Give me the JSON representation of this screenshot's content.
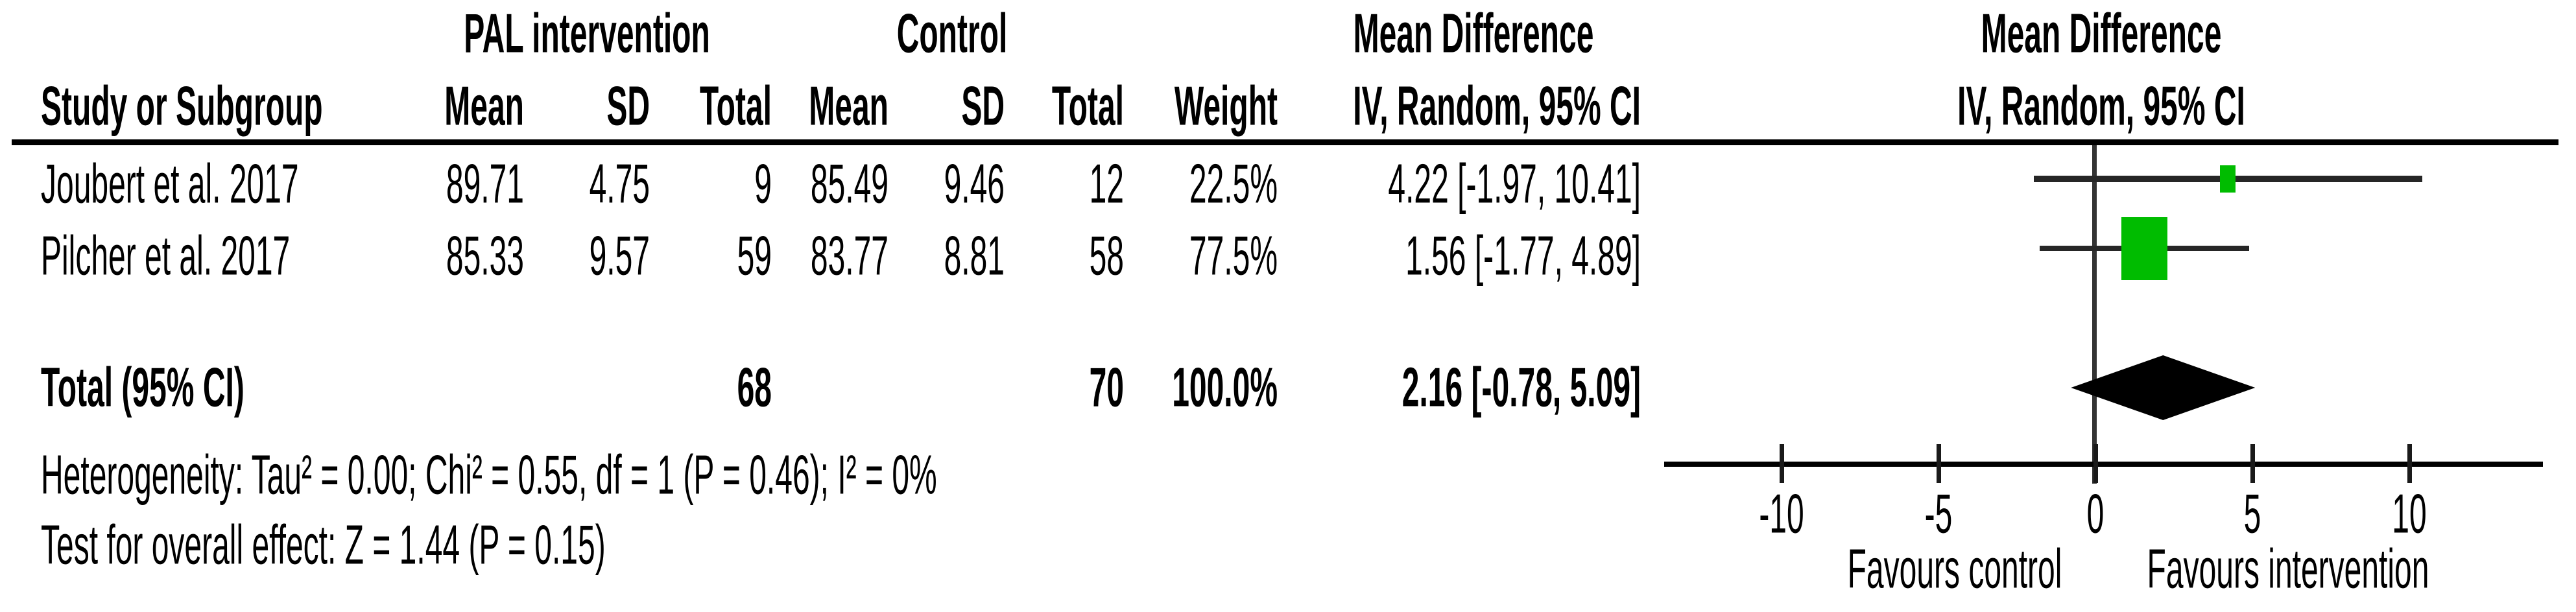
{
  "header": {
    "group_intervention": "PAL intervention",
    "group_control": "Control",
    "md_table": "Mean Difference",
    "md_plot": "Mean Difference",
    "study": "Study or Subgroup",
    "mean_i": "Mean",
    "sd_i": "SD",
    "total_i": "Total",
    "mean_c": "Mean",
    "sd_c": "SD",
    "total_c": "Total",
    "weight": "Weight",
    "ci_table": "IV, Random, 95% CI",
    "ci_plot": "IV, Random, 95% CI"
  },
  "rows": [
    {
      "study": "Joubert et al. 2017",
      "mean_i": "89.71",
      "sd_i": "4.75",
      "total_i": "9",
      "mean_c": "85.49",
      "sd_c": "9.46",
      "total_c": "12",
      "weight": "22.5%",
      "ci": "4.22 [-1.97, 10.41]"
    },
    {
      "study": "Pilcher et al. 2017",
      "mean_i": "85.33",
      "sd_i": "9.57",
      "total_i": "59",
      "mean_c": "83.77",
      "sd_c": "8.81",
      "total_c": "58",
      "weight": "77.5%",
      "ci": "1.56 [-1.77, 4.89]"
    }
  ],
  "total_row": {
    "label": "Total (95% CI)",
    "total_i": "68",
    "total_c": "70",
    "weight": "100.0%",
    "ci": "2.16 [-0.78, 5.09]"
  },
  "footer": {
    "heterogeneity": "Heterogeneity: Tau² = 0.00; Chi² = 0.55, df = 1 (P = 0.46); I² = 0%",
    "overall_effect": "Test for overall effect: Z = 1.44 (P = 0.15)"
  },
  "chart_data": {
    "type": "forest",
    "effect_measure": "Mean Difference",
    "model": "IV, Random, 95% CI",
    "studies": [
      {
        "name": "Joubert et al. 2017",
        "intervention": {
          "mean": 89.71,
          "sd": 4.75,
          "total": 9
        },
        "control": {
          "mean": 85.49,
          "sd": 9.46,
          "total": 12
        },
        "weight_pct": 22.5,
        "md": 4.22,
        "ci_low": -1.97,
        "ci_high": 10.41
      },
      {
        "name": "Pilcher et al. 2017",
        "intervention": {
          "mean": 85.33,
          "sd": 9.57,
          "total": 59
        },
        "control": {
          "mean": 83.77,
          "sd": 8.81,
          "total": 58
        },
        "weight_pct": 77.5,
        "md": 1.56,
        "ci_low": -1.77,
        "ci_high": 4.89
      }
    ],
    "total": {
      "intervention_total": 68,
      "control_total": 70,
      "weight_pct": 100.0,
      "md": 2.16,
      "ci_low": -0.78,
      "ci_high": 5.09
    },
    "heterogeneity": {
      "tau2": 0.0,
      "chi2": 0.55,
      "df": 1,
      "p": 0.46,
      "i2_pct": 0
    },
    "overall_effect": {
      "z": 1.44,
      "p": 0.15
    },
    "x_ticks": [
      -10,
      -5,
      0,
      5,
      10
    ],
    "xlim": [
      -13.7,
      14.3
    ],
    "axis_labels": {
      "left": "Favours control",
      "right": "Favours intervention"
    },
    "square_color": "#00BC00",
    "diamond_color": "#000000",
    "ci_line_color": "#262626",
    "zero_line_color": "#333333"
  }
}
